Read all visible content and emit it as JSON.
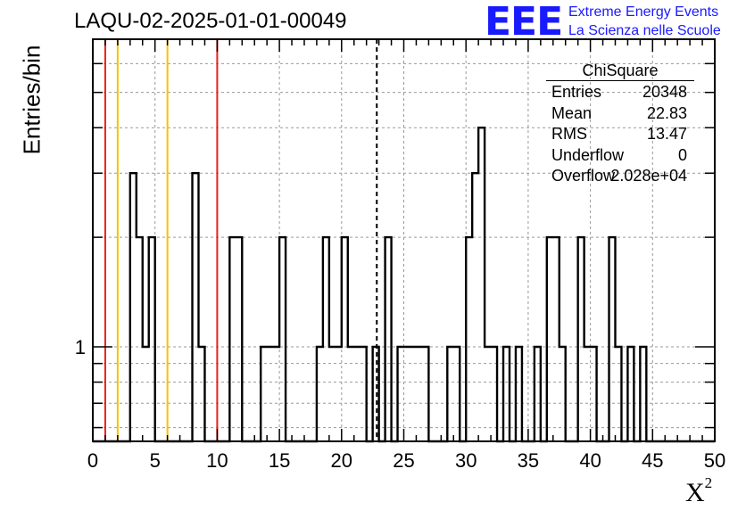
{
  "header": {
    "title": "LAQU-02-2025-01-01-00049",
    "logo_text": "EEE",
    "org_line1": "Extreme Energy Events",
    "org_line2": "La Scienza nelle Scuole"
  },
  "stats_box": {
    "name": "ChiSquare",
    "rows": [
      {
        "label": "Entries",
        "value": "20348"
      },
      {
        "label": "Mean",
        "value": "22.83"
      },
      {
        "label": "RMS",
        "value": "13.47"
      },
      {
        "label": "Underflow",
        "value": "0"
      },
      {
        "label": "Overflow",
        "value": "2.028e+04"
      }
    ]
  },
  "colors": {
    "red_line": "#e8211c",
    "yellow_line": "#f5c400",
    "logo_blue": "#1a1aff",
    "grid": "#9a9a9a"
  },
  "chart_data": {
    "type": "bar",
    "histogram_step": true,
    "xlabel": "X²",
    "ylabel": "Entries/bin",
    "xlim": [
      0,
      50
    ],
    "ylim": [
      0.55,
      7
    ],
    "y_scale": "log",
    "x_ticks": [
      "0",
      "5",
      "10",
      "15",
      "20",
      "25",
      "30",
      "35",
      "40",
      "45",
      "50"
    ],
    "y_ticks": [
      "1"
    ],
    "grid": true,
    "bin_width": 0.5,
    "bins": [
      {
        "x": 3.0,
        "y": 3
      },
      {
        "x": 3.5,
        "y": 2
      },
      {
        "x": 4.0,
        "y": 1
      },
      {
        "x": 4.5,
        "y": 2
      },
      {
        "x": 8.0,
        "y": 3
      },
      {
        "x": 8.5,
        "y": 1
      },
      {
        "x": 11.0,
        "y": 2
      },
      {
        "x": 11.5,
        "y": 2
      },
      {
        "x": 13.5,
        "y": 1
      },
      {
        "x": 14.0,
        "y": 1
      },
      {
        "x": 14.5,
        "y": 1
      },
      {
        "x": 15.0,
        "y": 2
      },
      {
        "x": 18.0,
        "y": 1
      },
      {
        "x": 18.5,
        "y": 2
      },
      {
        "x": 19.0,
        "y": 1
      },
      {
        "x": 19.5,
        "y": 1
      },
      {
        "x": 20.0,
        "y": 2
      },
      {
        "x": 20.5,
        "y": 1
      },
      {
        "x": 21.0,
        "y": 1
      },
      {
        "x": 21.5,
        "y": 1
      },
      {
        "x": 22.5,
        "y": 1
      },
      {
        "x": 23.5,
        "y": 2
      },
      {
        "x": 24.5,
        "y": 1
      },
      {
        "x": 25.0,
        "y": 1
      },
      {
        "x": 25.5,
        "y": 1
      },
      {
        "x": 26.0,
        "y": 1
      },
      {
        "x": 26.5,
        "y": 1
      },
      {
        "x": 28.5,
        "y": 1
      },
      {
        "x": 29.0,
        "y": 1
      },
      {
        "x": 30.0,
        "y": 2
      },
      {
        "x": 30.5,
        "y": 3
      },
      {
        "x": 31.0,
        "y": 4
      },
      {
        "x": 31.5,
        "y": 1
      },
      {
        "x": 32.0,
        "y": 1
      },
      {
        "x": 33.0,
        "y": 1
      },
      {
        "x": 34.0,
        "y": 1
      },
      {
        "x": 35.5,
        "y": 1
      },
      {
        "x": 36.5,
        "y": 2
      },
      {
        "x": 37.0,
        "y": 2
      },
      {
        "x": 37.5,
        "y": 1
      },
      {
        "x": 39.0,
        "y": 2
      },
      {
        "x": 39.5,
        "y": 1
      },
      {
        "x": 40.0,
        "y": 1
      },
      {
        "x": 41.5,
        "y": 2
      },
      {
        "x": 42.0,
        "y": 1
      },
      {
        "x": 43.0,
        "y": 1
      },
      {
        "x": 44.0,
        "y": 1
      }
    ],
    "vertical_lines": [
      {
        "x": 1,
        "color": "red",
        "style": "solid"
      },
      {
        "x": 2,
        "color": "yellow",
        "style": "solid"
      },
      {
        "x": 6,
        "color": "yellow",
        "style": "solid"
      },
      {
        "x": 10,
        "color": "red",
        "style": "solid"
      },
      {
        "x": 22.83,
        "color": "black",
        "style": "dashed"
      }
    ]
  }
}
